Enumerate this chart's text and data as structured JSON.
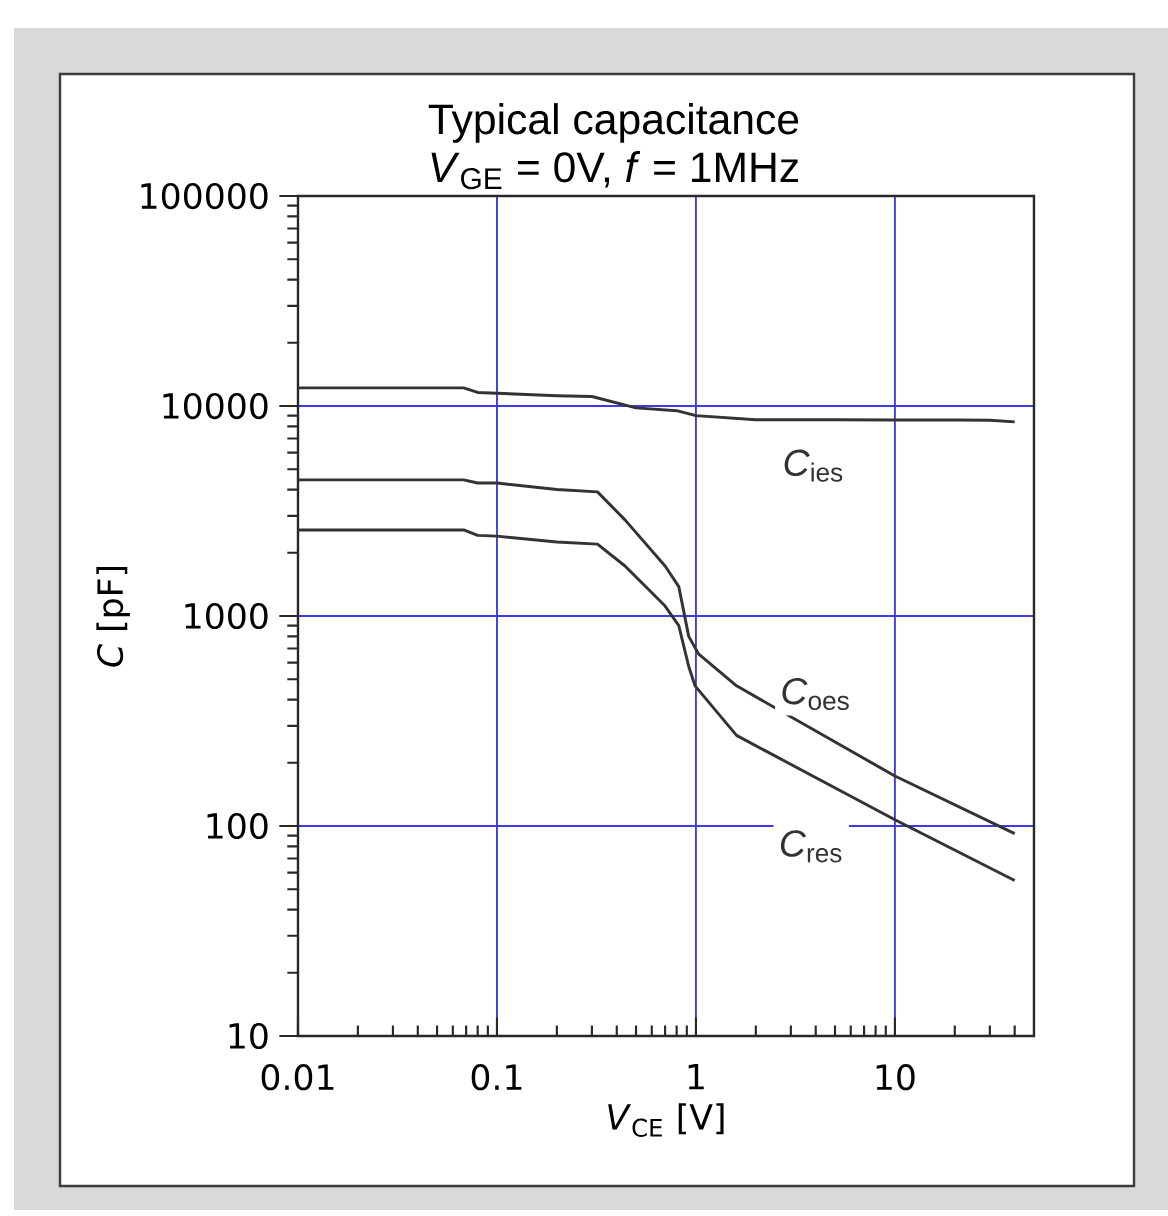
{
  "chart_data": {
    "type": "line",
    "title": "Typical capacitance",
    "subtitle": "*V*$_{GE}$ = 0V, *f* = 1MHz",
    "xlabel": "*V*$_{CE}$ [V]",
    "ylabel": "*C* [pF]",
    "log": "xy",
    "grid": true,
    "marker": "none",
    "line_style": "solid",
    "xlim": [
      0.01,
      50
    ],
    "ylim": [
      10,
      100000
    ],
    "xticks": [
      0.01,
      0.1,
      1,
      10
    ],
    "yticks": [
      10,
      100,
      1000,
      10000,
      100000
    ],
    "series": [
      {
        "color": "#333333",
        "x": [
          0.01,
          0.068,
          0.08,
          0.1,
          0.2,
          0.3,
          0.5,
          0.8,
          1,
          2,
          5,
          10,
          20,
          30,
          40
        ],
        "values": [
          12200,
          12200,
          11600,
          11500,
          11200,
          11100,
          9800,
          9500,
          9000,
          8600,
          8600,
          8580,
          8580,
          8550,
          8400
        ]
      },
      {
        "color": "#333333",
        "x": [
          0.01,
          0.068,
          0.08,
          0.1,
          0.2,
          0.32,
          0.44,
          0.7,
          0.82,
          0.92,
          1.03,
          1.6,
          10,
          40
        ],
        "values": [
          4450,
          4450,
          4300,
          4300,
          4000,
          3900,
          2870,
          1730,
          1380,
          800,
          660,
          465,
          173,
          92
        ]
      },
      {
        "color": "#333333",
        "x": [
          0.01,
          0.068,
          0.08,
          0.1,
          0.2,
          0.32,
          0.44,
          0.7,
          0.82,
          0.92,
          0.99,
          1.6,
          10,
          40
        ],
        "values": [
          2570,
          2570,
          2420,
          2400,
          2250,
          2200,
          1730,
          1115,
          900,
          575,
          465,
          270,
          107,
          55
        ]
      }
    ],
    "annotations": [
      {
        "text": "*C*$_{ies}$",
        "x": 3.9,
        "y": 5200
      },
      {
        "text": "*C*$_{oes}$",
        "x": 4,
        "y": 425
      },
      {
        "text": "*C*$_{res}$",
        "x": 3.8,
        "y": 80
      }
    ]
  }
}
